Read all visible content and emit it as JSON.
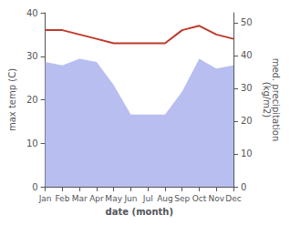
{
  "chart_data": {
    "type": "line",
    "categories": [
      "Jan",
      "Feb",
      "Mar",
      "Apr",
      "May",
      "Jun",
      "Jul",
      "Aug",
      "Sep",
      "Oct",
      "Nov",
      "Dec"
    ],
    "xlabel": "date (month)",
    "ylabel": "max temp (C)",
    "y2label": "med. precipitation\n(kg/m2)",
    "ylim": [
      0,
      40
    ],
    "yticks": [
      0,
      10,
      20,
      30,
      40
    ],
    "y2lim": [
      0,
      53
    ],
    "y2ticks": [
      0,
      10,
      20,
      30,
      40,
      50
    ],
    "grid": false,
    "series": [
      {
        "type": "area",
        "axis": "y2",
        "color": "#b8bef0",
        "values": [
          38,
          37,
          39,
          38,
          31,
          22,
          22,
          22,
          29,
          39,
          36,
          37
        ]
      },
      {
        "type": "line",
        "color": "#c0392b",
        "values": [
          36,
          36,
          35,
          34,
          33,
          33,
          33,
          33,
          36,
          37,
          35,
          34
        ]
      }
    ]
  }
}
